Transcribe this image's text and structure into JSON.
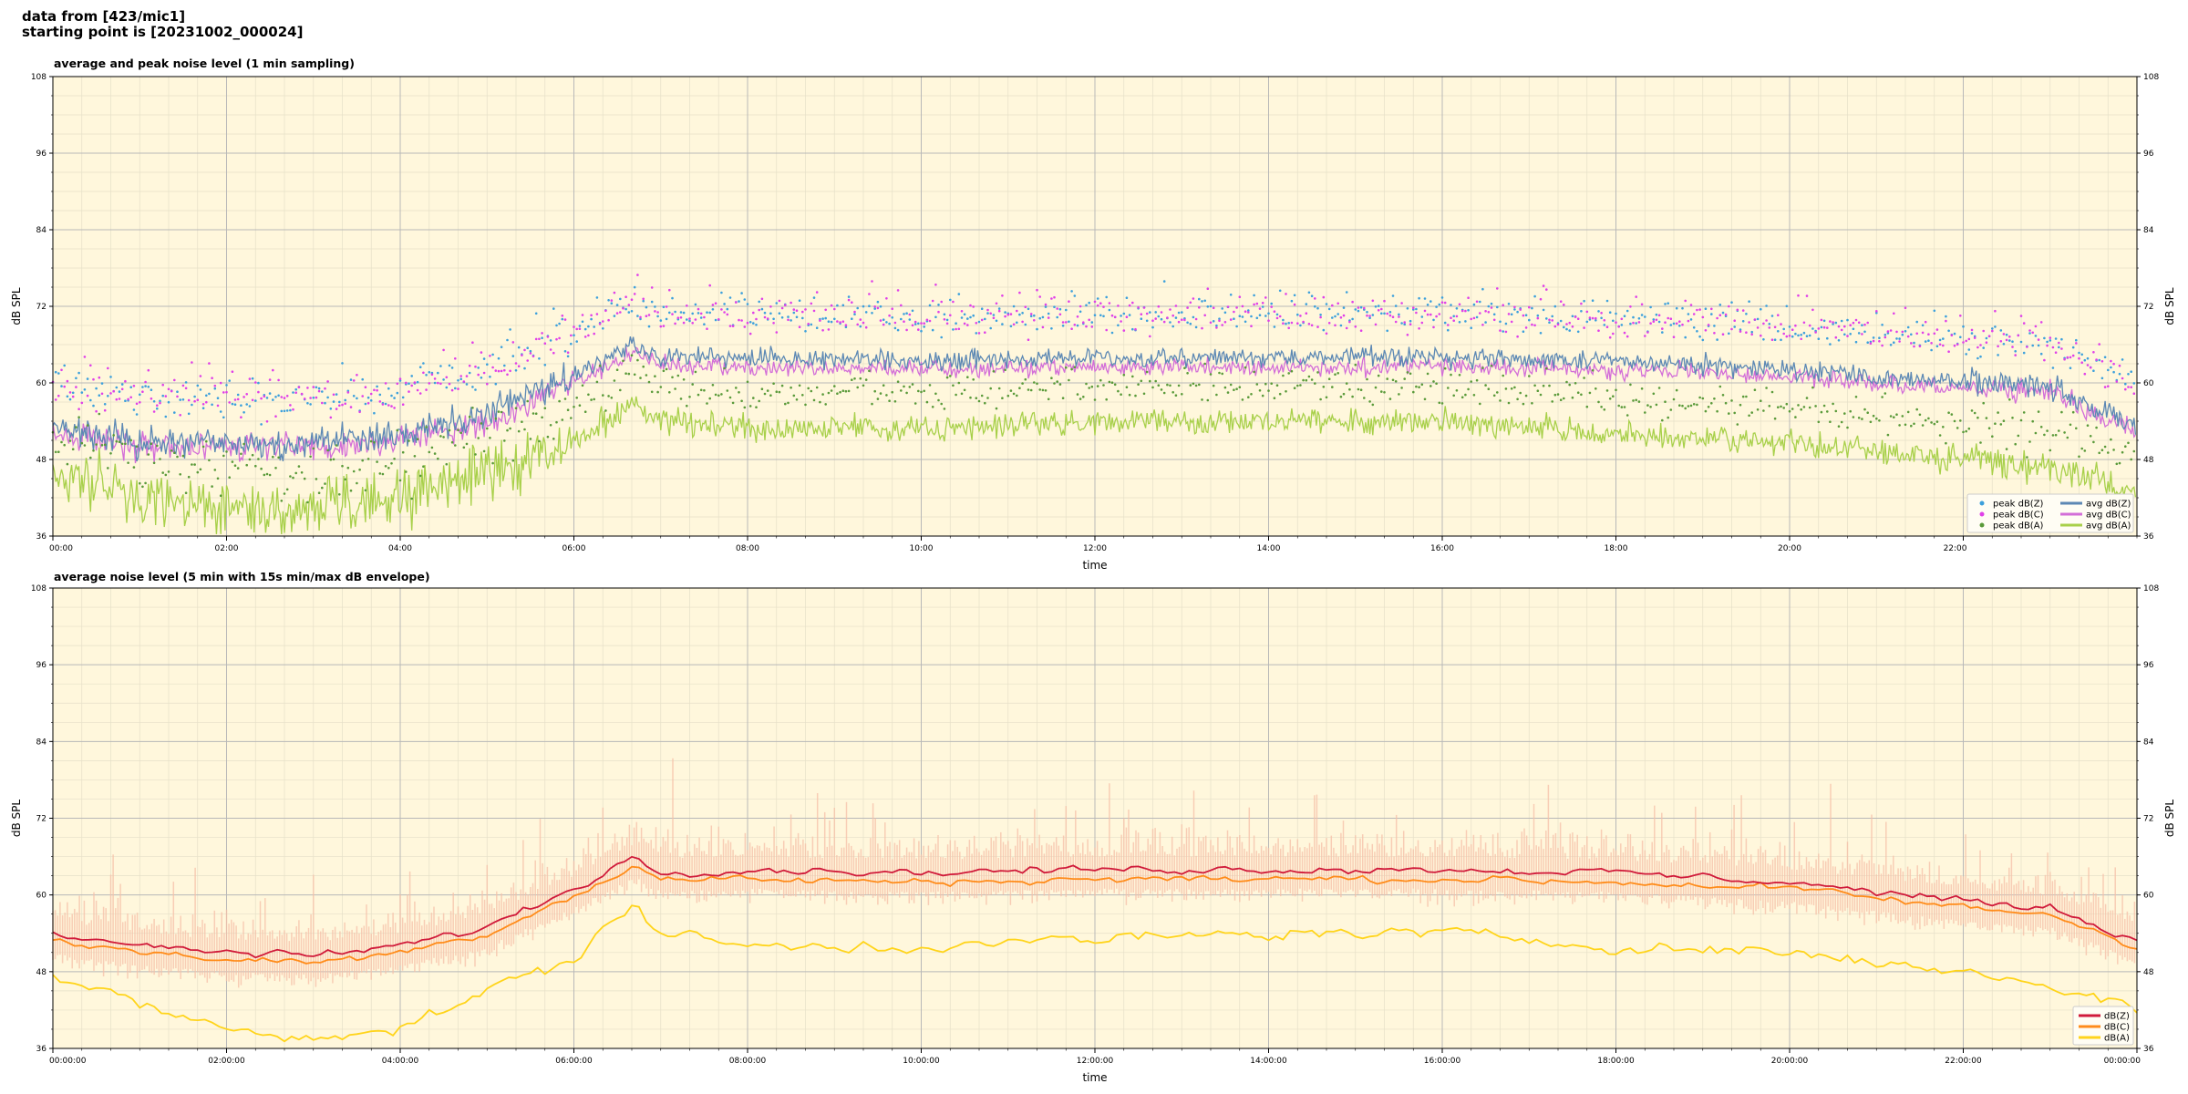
{
  "header": {
    "line1": "data from [423/mic1]",
    "line2": "starting point is [20231002_000024]"
  },
  "colors": {
    "plot_bg": "#fff7dc",
    "zc": "#5c88b4",
    "cc": "#d36ed8",
    "ac": "#a8d04a",
    "z_peak": "#3ca0dc",
    "c_peak": "#e040e8",
    "a_peak": "#5a9a3a",
    "z2": "#d01a3a",
    "c2": "#ff8c1a",
    "a2": "#ffd41a",
    "env": "#f6c0a8"
  },
  "chart_data": [
    {
      "type": "line",
      "title": "average and peak noise level (1 min sampling)",
      "xlabel": "time",
      "ylabel": "dB SPL",
      "ylim": [
        36,
        108
      ],
      "yticks": [
        36,
        48,
        60,
        72,
        84,
        96,
        108
      ],
      "xticks": [
        "00:00",
        "02:00",
        "04:00",
        "06:00",
        "08:00",
        "10:00",
        "12:00",
        "14:00",
        "16:00",
        "18:00",
        "20:00",
        "22:00"
      ],
      "x_range_hours": [
        0,
        24
      ],
      "grid": true,
      "legend_position": "lower-right",
      "legend": [
        "peak dB(Z)",
        "peak dB(C)",
        "peak dB(A)",
        "avg dB(Z)",
        "avg dB(C)",
        "avg dB(A)"
      ],
      "series": [
        {
          "name": "avg dB(Z)",
          "x_hours": [
            0,
            1,
            2,
            3,
            4,
            5,
            6,
            6.7,
            7,
            8,
            10,
            12,
            14,
            16,
            18,
            20,
            22,
            23,
            24
          ],
          "values": [
            53,
            51,
            51,
            50.5,
            52,
            55,
            61,
            66,
            64,
            64,
            63.5,
            64,
            64,
            64,
            63.5,
            62,
            60,
            59.5,
            53
          ]
        },
        {
          "name": "avg dB(C)",
          "x_hours": [
            0,
            1,
            2,
            3,
            4,
            5,
            6,
            6.7,
            7,
            8,
            10,
            12,
            14,
            16,
            18,
            20,
            22,
            23,
            24
          ],
          "values": [
            52,
            50,
            50,
            49.5,
            51,
            54,
            60,
            65,
            63,
            62.5,
            62,
            62.5,
            62.5,
            62.5,
            62,
            61,
            59,
            58.5,
            52
          ]
        },
        {
          "name": "avg dB(A)",
          "x_hours": [
            0,
            1,
            2,
            3,
            4,
            5,
            6,
            6.7,
            7,
            8,
            10,
            12,
            14,
            16,
            18,
            20,
            22,
            23,
            24
          ],
          "values": [
            46,
            42,
            40,
            40,
            42,
            46,
            51,
            57,
            54,
            53,
            53,
            54,
            54,
            54,
            52,
            51,
            48,
            47,
            43
          ]
        },
        {
          "name": "peak dB(Z)",
          "values_note_offset": 6
        },
        {
          "name": "peak dB(C)",
          "values_note_offset": 7
        },
        {
          "name": "peak dB(A)",
          "values_note_offset": 4
        }
      ]
    },
    {
      "type": "line",
      "title": "average noise level (5 min with 15s min/max dB envelope)",
      "xlabel": "time",
      "ylabel": "dB SPL",
      "ylim": [
        36,
        108
      ],
      "yticks": [
        36,
        48,
        60,
        72,
        84,
        96,
        108
      ],
      "xticks": [
        "00:00:00",
        "02:00:00",
        "04:00:00",
        "06:00:00",
        "08:00:00",
        "10:00:00",
        "12:00:00",
        "14:00:00",
        "16:00:00",
        "18:00:00",
        "20:00:00",
        "22:00:00",
        "00:00:00"
      ],
      "x_range_hours": [
        0,
        24
      ],
      "grid": true,
      "legend_position": "lower-right",
      "legend": [
        "dB(Z)",
        "dB(C)",
        "dB(A)"
      ],
      "series": [
        {
          "name": "dB(Z)",
          "x_hours": [
            0,
            1,
            2,
            3,
            4,
            5,
            6,
            6.7,
            7,
            8,
            10,
            12,
            14,
            16,
            18,
            20,
            22,
            23,
            24
          ],
          "values": [
            54,
            52,
            51,
            50.5,
            52,
            55,
            61,
            66,
            63.5,
            64,
            63.5,
            64,
            64,
            64,
            63.5,
            62,
            59,
            58,
            53
          ]
        },
        {
          "name": "dB(C)",
          "x_hours": [
            0,
            1,
            2,
            3,
            4,
            5,
            6,
            6.7,
            7,
            8,
            10,
            12,
            14,
            16,
            18,
            20,
            22,
            23,
            24
          ],
          "values": [
            53,
            51,
            50,
            49.5,
            51,
            54,
            60,
            64.5,
            62.5,
            62.5,
            62,
            62.5,
            62.5,
            62.5,
            62,
            61,
            58,
            57,
            52
          ]
        },
        {
          "name": "dB(A)",
          "x_hours": [
            0,
            1,
            2,
            3,
            4,
            5,
            6,
            6.7,
            7,
            8,
            10,
            12,
            14,
            16,
            18,
            20,
            22,
            23,
            24
          ],
          "values": [
            47,
            43,
            39,
            38,
            39,
            45,
            50,
            59,
            54,
            52,
            52,
            53,
            54,
            54,
            52,
            51,
            48,
            46,
            42
          ]
        }
      ]
    }
  ]
}
